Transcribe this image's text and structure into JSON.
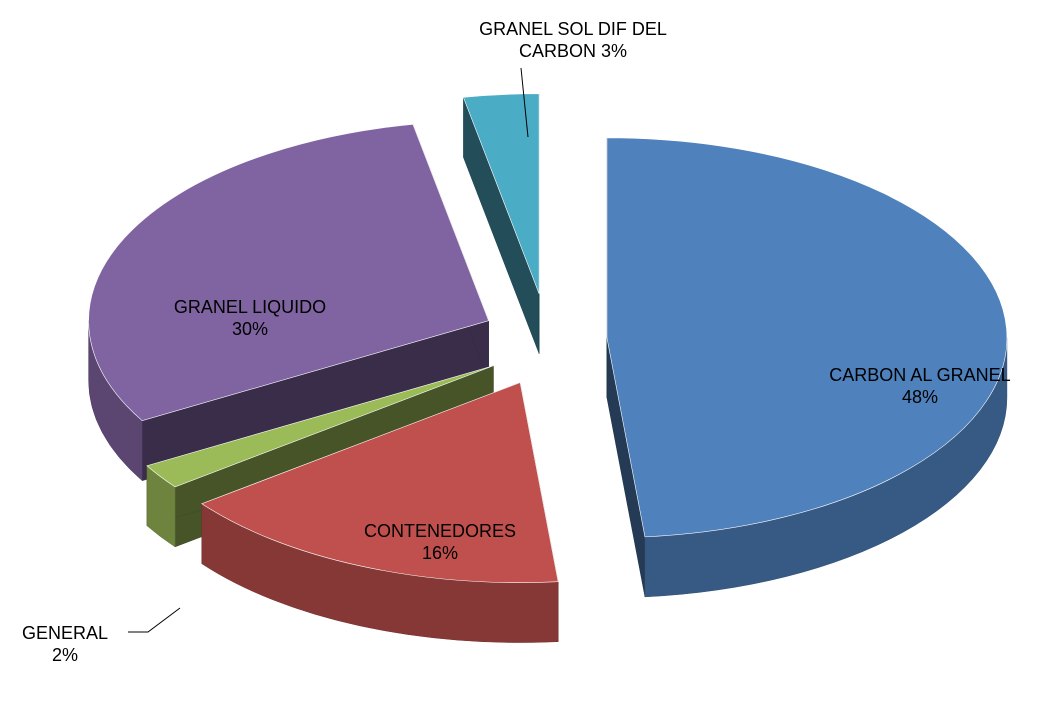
{
  "chart_data": {
    "type": "pie3d",
    "categories": [
      "CARBON AL GRANEL",
      "CONTENEDORES",
      "GENERAL",
      "GRANEL LIQUIDO",
      "GRANEL SOL DIF DEL CARBON"
    ],
    "values": [
      48,
      16,
      2,
      30,
      3
    ],
    "value_labels": [
      "48%",
      "16%",
      "2%",
      "30%",
      "3%"
    ],
    "colors": [
      "#4f81bd",
      "#c0504d",
      "#9bbb59",
      "#8064a2",
      "#4bacc6"
    ]
  }
}
